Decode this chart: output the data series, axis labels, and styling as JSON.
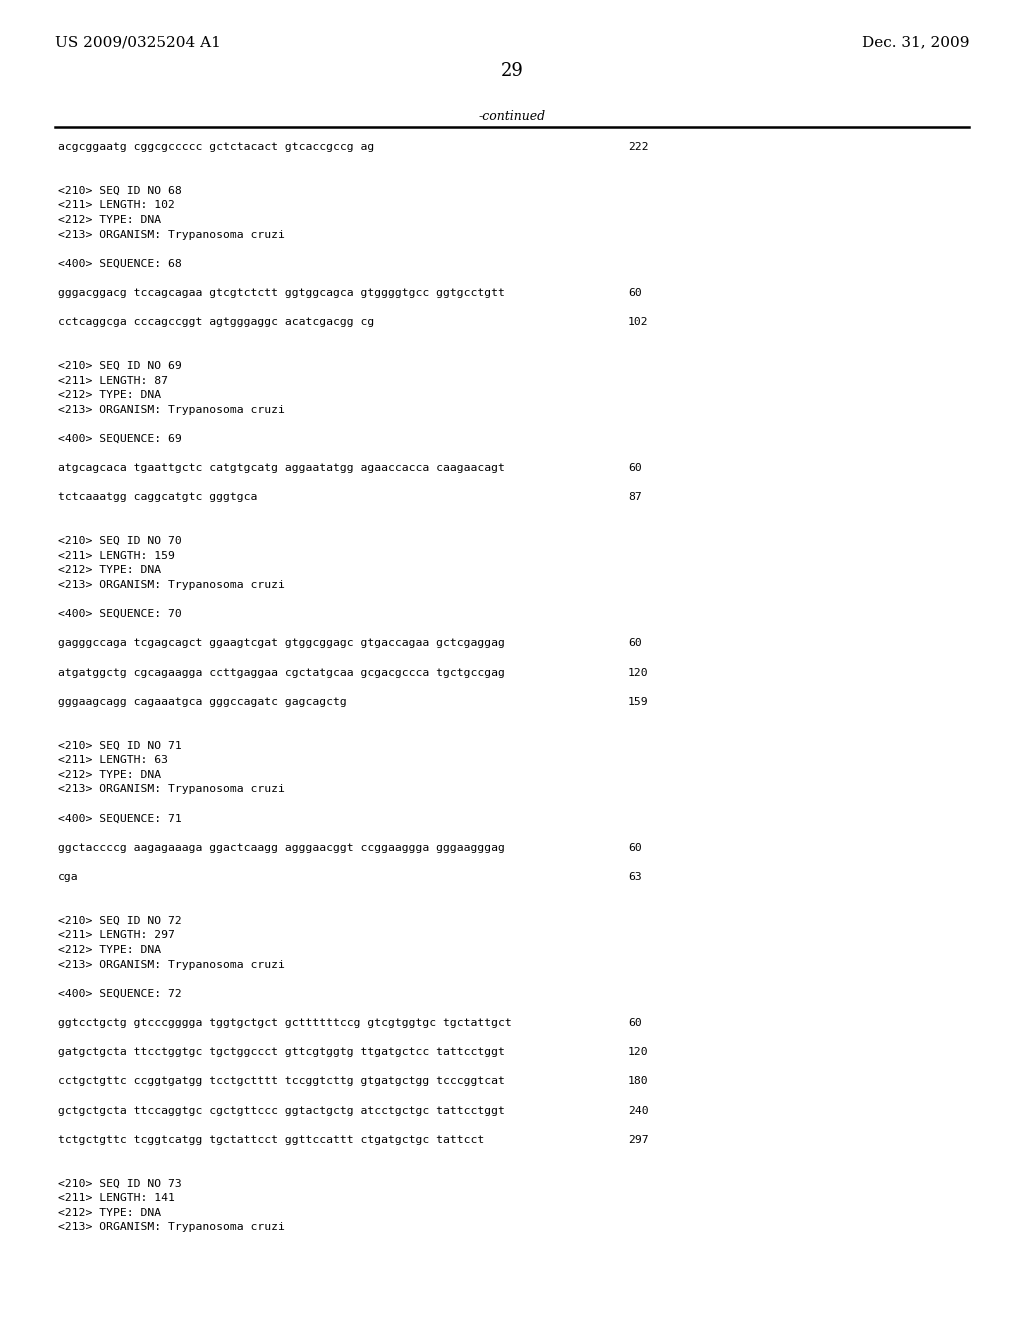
{
  "header_left": "US 2009/0325204 A1",
  "header_right": "Dec. 31, 2009",
  "page_number": "29",
  "continued_label": "-continued",
  "bg_color": "#ffffff",
  "text_color": "#000000",
  "font_size_header": 11,
  "font_size_page": 13,
  "font_size_mono": 8.2,
  "font_size_continued": 9,
  "content_lines": [
    {
      "text": "acgcggaatg cggcgccccc gctctacact gtcaccgccg ag",
      "num": "222"
    },
    {
      "text": "",
      "num": ""
    },
    {
      "text": "",
      "num": ""
    },
    {
      "text": "<210> SEQ ID NO 68",
      "num": ""
    },
    {
      "text": "<211> LENGTH: 102",
      "num": ""
    },
    {
      "text": "<212> TYPE: DNA",
      "num": ""
    },
    {
      "text": "<213> ORGANISM: Trypanosoma cruzi",
      "num": ""
    },
    {
      "text": "",
      "num": ""
    },
    {
      "text": "<400> SEQUENCE: 68",
      "num": ""
    },
    {
      "text": "",
      "num": ""
    },
    {
      "text": "gggacggacg tccagcagaa gtcgtctctt ggtggcagca gtggggtgcc ggtgcctgtt",
      "num": "60"
    },
    {
      "text": "",
      "num": ""
    },
    {
      "text": "cctcaggcga cccagccggt agtgggaggc acatcgacgg cg",
      "num": "102"
    },
    {
      "text": "",
      "num": ""
    },
    {
      "text": "",
      "num": ""
    },
    {
      "text": "<210> SEQ ID NO 69",
      "num": ""
    },
    {
      "text": "<211> LENGTH: 87",
      "num": ""
    },
    {
      "text": "<212> TYPE: DNA",
      "num": ""
    },
    {
      "text": "<213> ORGANISM: Trypanosoma cruzi",
      "num": ""
    },
    {
      "text": "",
      "num": ""
    },
    {
      "text": "<400> SEQUENCE: 69",
      "num": ""
    },
    {
      "text": "",
      "num": ""
    },
    {
      "text": "atgcagcaca tgaattgctc catgtgcatg aggaatatgg agaaccacca caagaacagt",
      "num": "60"
    },
    {
      "text": "",
      "num": ""
    },
    {
      "text": "tctcaaatgg caggcatgtc gggtgca",
      "num": "87"
    },
    {
      "text": "",
      "num": ""
    },
    {
      "text": "",
      "num": ""
    },
    {
      "text": "<210> SEQ ID NO 70",
      "num": ""
    },
    {
      "text": "<211> LENGTH: 159",
      "num": ""
    },
    {
      "text": "<212> TYPE: DNA",
      "num": ""
    },
    {
      "text": "<213> ORGANISM: Trypanosoma cruzi",
      "num": ""
    },
    {
      "text": "",
      "num": ""
    },
    {
      "text": "<400> SEQUENCE: 70",
      "num": ""
    },
    {
      "text": "",
      "num": ""
    },
    {
      "text": "gagggccaga tcgagcagct ggaagtcgat gtggcggagc gtgaccagaa gctcgaggag",
      "num": "60"
    },
    {
      "text": "",
      "num": ""
    },
    {
      "text": "atgatggctg cgcagaagga ccttgaggaa cgctatgcaa gcgacgccca tgctgccgag",
      "num": "120"
    },
    {
      "text": "",
      "num": ""
    },
    {
      "text": "gggaagcagg cagaaatgca gggccagatc gagcagctg",
      "num": "159"
    },
    {
      "text": "",
      "num": ""
    },
    {
      "text": "",
      "num": ""
    },
    {
      "text": "<210> SEQ ID NO 71",
      "num": ""
    },
    {
      "text": "<211> LENGTH: 63",
      "num": ""
    },
    {
      "text": "<212> TYPE: DNA",
      "num": ""
    },
    {
      "text": "<213> ORGANISM: Trypanosoma cruzi",
      "num": ""
    },
    {
      "text": "",
      "num": ""
    },
    {
      "text": "<400> SEQUENCE: 71",
      "num": ""
    },
    {
      "text": "",
      "num": ""
    },
    {
      "text": "ggctaccccg aagagaaaga ggactcaagg agggaacggt ccggaaggga gggaagggag",
      "num": "60"
    },
    {
      "text": "",
      "num": ""
    },
    {
      "text": "cga",
      "num": "63"
    },
    {
      "text": "",
      "num": ""
    },
    {
      "text": "",
      "num": ""
    },
    {
      "text": "<210> SEQ ID NO 72",
      "num": ""
    },
    {
      "text": "<211> LENGTH: 297",
      "num": ""
    },
    {
      "text": "<212> TYPE: DNA",
      "num": ""
    },
    {
      "text": "<213> ORGANISM: Trypanosoma cruzi",
      "num": ""
    },
    {
      "text": "",
      "num": ""
    },
    {
      "text": "<400> SEQUENCE: 72",
      "num": ""
    },
    {
      "text": "",
      "num": ""
    },
    {
      "text": "ggtcctgctg gtcccgggga tggtgctgct gcttttttccg gtcgtggtgc tgctattgct",
      "num": "60"
    },
    {
      "text": "",
      "num": ""
    },
    {
      "text": "gatgctgcta ttcctggtgc tgctggccct gttcgtggtg ttgatgctcc tattcctggt",
      "num": "120"
    },
    {
      "text": "",
      "num": ""
    },
    {
      "text": "cctgctgttc ccggtgatgg tcctgctttt tccggtcttg gtgatgctgg tcccggtcat",
      "num": "180"
    },
    {
      "text": "",
      "num": ""
    },
    {
      "text": "gctgctgcta ttccaggtgc cgctgttccc ggtactgctg atcctgctgc tattcctggt",
      "num": "240"
    },
    {
      "text": "",
      "num": ""
    },
    {
      "text": "tctgctgttc tcggtcatgg tgctattcct ggttccattt ctgatgctgc tattcct",
      "num": "297"
    },
    {
      "text": "",
      "num": ""
    },
    {
      "text": "",
      "num": ""
    },
    {
      "text": "<210> SEQ ID NO 73",
      "num": ""
    },
    {
      "text": "<211> LENGTH: 141",
      "num": ""
    },
    {
      "text": "<212> TYPE: DNA",
      "num": ""
    },
    {
      "text": "<213> ORGANISM: Trypanosoma cruzi",
      "num": ""
    }
  ]
}
